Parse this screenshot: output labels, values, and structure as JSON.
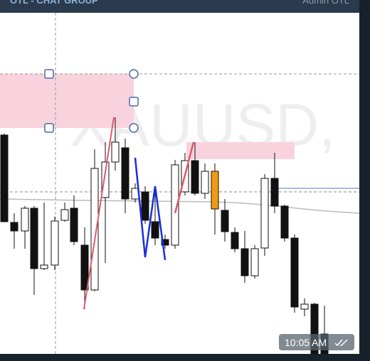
{
  "header": {
    "title": "OTL - CHAT GROUP",
    "author": "Admin OTL"
  },
  "chart_image": {
    "watermark": "XAUUSD,"
  },
  "message": {
    "time": "10:05 AM"
  }
}
